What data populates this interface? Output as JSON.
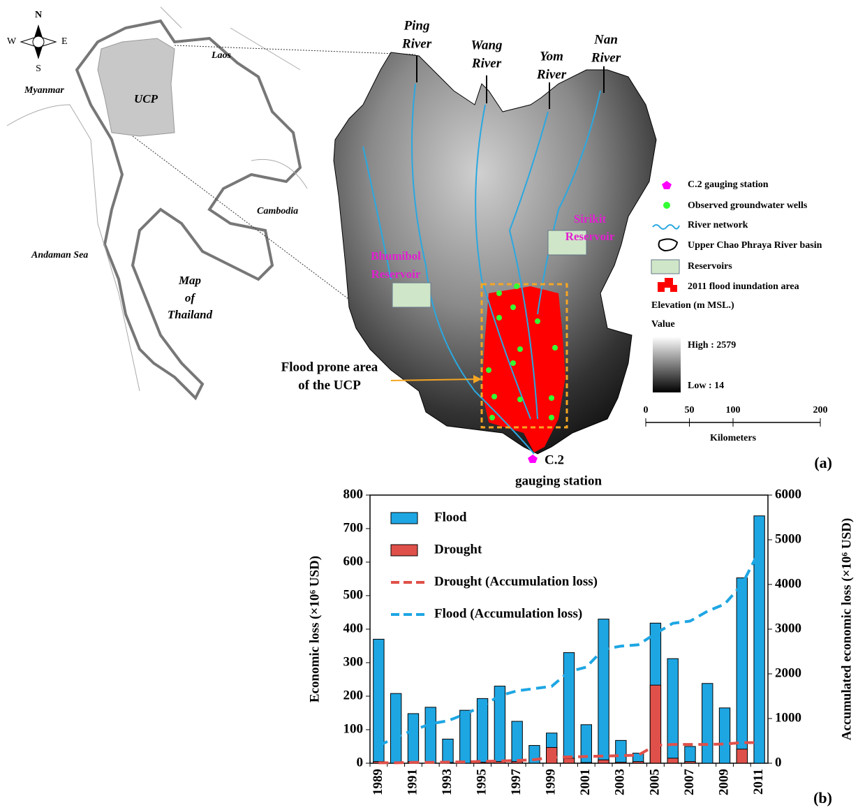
{
  "map": {
    "compass": {
      "n": "N",
      "s": "S",
      "e": "E",
      "w": "W"
    },
    "countries": {
      "myanmar": "Myanmar",
      "laos": "Laos",
      "cambodia": "Cambodia",
      "sea": "Andaman Sea",
      "ucp": "UCP"
    },
    "map_title": [
      "Map",
      "of",
      "Thailand"
    ],
    "rivers": [
      [
        "Ping",
        "River"
      ],
      [
        "Wang",
        "River"
      ],
      [
        "Yom",
        "River"
      ],
      [
        "Nan",
        "River"
      ]
    ],
    "reservoirs": [
      [
        "Bhumibol",
        "Reservoir"
      ],
      [
        "Sirikit",
        "Reservoir"
      ]
    ],
    "flood_prone": [
      "Flood prone area",
      "of the UCP"
    ],
    "station": [
      "C.2",
      "gauging station"
    ],
    "legend": [
      "C.2 gauging station",
      "Observed groundwater wells",
      "River network",
      "Upper Chao Phraya River basin",
      "Reservoirs",
      "2011 flood inundation area"
    ],
    "elevation": {
      "title": "Elevation (m MSL.)",
      "value": "Value",
      "high": "High : 2579",
      "low": "Low : 14"
    },
    "scale": {
      "ticks": [
        0,
        50,
        100,
        200
      ],
      "unit": "Kilometers"
    },
    "panel_label": "(a)"
  },
  "chart_data": {
    "type": "bar",
    "panel_label": "(b)",
    "y_label": "Economic loss (×10⁶ USD)",
    "y2_label": "Accumulated economic loss (×10⁶ USD)",
    "categories": [
      "1989",
      null,
      "1991",
      null,
      "1993",
      null,
      "1995",
      null,
      "1997",
      null,
      "1999",
      null,
      "2001",
      null,
      "2003",
      null,
      "2005",
      null,
      "2007",
      null,
      "2009",
      null,
      "2011"
    ],
    "series": [
      {
        "name": "Flood",
        "type": "bar",
        "color": "#1ea6e3",
        "values": [
          370,
          208,
          148,
          167,
          72,
          158,
          193,
          230,
          125,
          53,
          90,
          330,
          115,
          430,
          68,
          30,
          418,
          312,
          50,
          238,
          165,
          553,
          738
        ]
      },
      {
        "name": "Drought",
        "type": "bar",
        "color": "#e0504a",
        "values": [
          5,
          0,
          5,
          0,
          2,
          0,
          3,
          5,
          5,
          0,
          47,
          15,
          2,
          10,
          3,
          5,
          233,
          15,
          5,
          0,
          0,
          42,
          0
        ]
      },
      {
        "name": "Drought (Accumulation loss)",
        "type": "line",
        "axis": "y2",
        "color": "#e0504a",
        "values": [
          10,
          10,
          20,
          20,
          25,
          30,
          40,
          50,
          60,
          80,
          130,
          140,
          150,
          160,
          170,
          180,
          400,
          420,
          420,
          420,
          430,
          460,
          460
        ]
      },
      {
        "name": "Flood (Accumulation loss)",
        "type": "line",
        "axis": "y2",
        "color": "#1ea6e3",
        "values": [
          390,
          580,
          740,
          880,
          950,
          1100,
          1280,
          1510,
          1620,
          1670,
          1720,
          2050,
          2150,
          2550,
          2620,
          2650,
          2900,
          3130,
          3180,
          3400,
          3560,
          4000,
          4750
        ]
      }
    ],
    "ylim": [
      0,
      800
    ],
    "yticks": [
      0,
      100,
      200,
      300,
      400,
      500,
      600,
      700,
      800
    ],
    "y2lim": [
      0,
      6000
    ],
    "y2ticks": [
      0,
      1000,
      2000,
      3000,
      4000,
      5000,
      6000
    ],
    "legend": "upper left"
  }
}
